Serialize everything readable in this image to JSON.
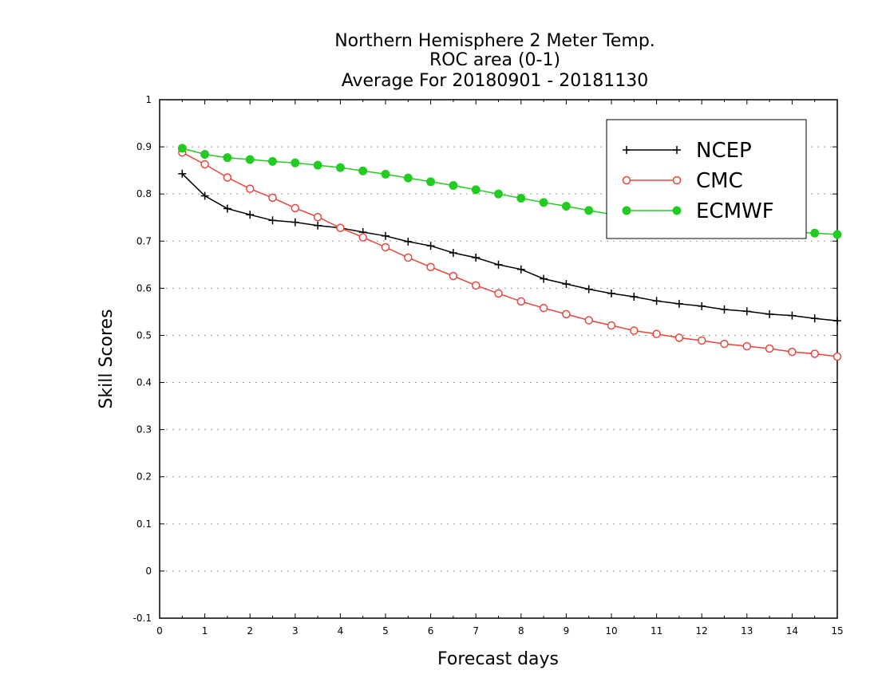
{
  "chart_data": {
    "type": "line",
    "title": [
      "Northern Hemisphere 2 Meter Temp.",
      "ROC area (0-1)",
      "Average For 20180901 - 20181130"
    ],
    "xlabel": "Forecast days",
    "ylabel": "Skill Scores",
    "xlim": [
      0,
      15
    ],
    "ylim": [
      -0.1,
      1
    ],
    "x_ticks": [
      "0",
      "1",
      "2",
      "3",
      "4",
      "5",
      "6",
      "7",
      "8",
      "9",
      "10",
      "11",
      "12",
      "13",
      "14",
      "15"
    ],
    "y_ticks": [
      "-0.1",
      "0",
      "0.1",
      "0.2",
      "0.3",
      "0.4",
      "0.5",
      "0.6",
      "0.7",
      "0.8",
      "0.9",
      "1"
    ],
    "grid": "horizontal dotted",
    "legend_position": "top-right",
    "x": [
      0.5,
      1,
      1.5,
      2,
      2.5,
      3,
      3.5,
      4,
      4.5,
      5,
      5.5,
      6,
      6.5,
      7,
      7.5,
      8,
      8.5,
      9,
      9.5,
      10,
      10.5,
      11,
      11.5,
      12,
      12.5,
      13,
      13.5,
      14,
      14.5,
      15
    ],
    "series": [
      {
        "name": "NCEP",
        "color": "#000000",
        "marker": "plus",
        "values": [
          0.843,
          0.796,
          0.769,
          0.756,
          0.744,
          0.74,
          0.733,
          0.728,
          0.719,
          0.711,
          0.699,
          0.69,
          0.675,
          0.665,
          0.65,
          0.64,
          0.62,
          0.609,
          0.598,
          0.589,
          0.582,
          0.573,
          0.567,
          0.562,
          0.555,
          0.551,
          0.545,
          0.542,
          0.536,
          0.531
        ]
      },
      {
        "name": "CMC",
        "color": "#e8453c",
        "marker": "open-circle",
        "values": [
          0.888,
          0.863,
          0.835,
          0.811,
          0.792,
          0.77,
          0.751,
          0.728,
          0.708,
          0.687,
          0.665,
          0.645,
          0.626,
          0.606,
          0.589,
          0.572,
          0.558,
          0.545,
          0.532,
          0.521,
          0.51,
          0.503,
          0.495,
          0.489,
          0.482,
          0.477,
          0.472,
          0.465,
          0.461,
          0.455
        ]
      },
      {
        "name": "ECMWF",
        "color": "#22cc22",
        "marker": "filled-circle",
        "values": [
          0.897,
          0.884,
          0.877,
          0.873,
          0.869,
          0.866,
          0.861,
          0.856,
          0.849,
          0.842,
          0.834,
          0.826,
          0.818,
          0.809,
          0.8,
          0.791,
          0.782,
          0.774,
          0.765,
          0.757,
          0.75,
          0.744,
          0.738,
          0.734,
          0.729,
          0.726,
          0.722,
          0.719,
          0.717,
          0.714
        ]
      }
    ]
  }
}
